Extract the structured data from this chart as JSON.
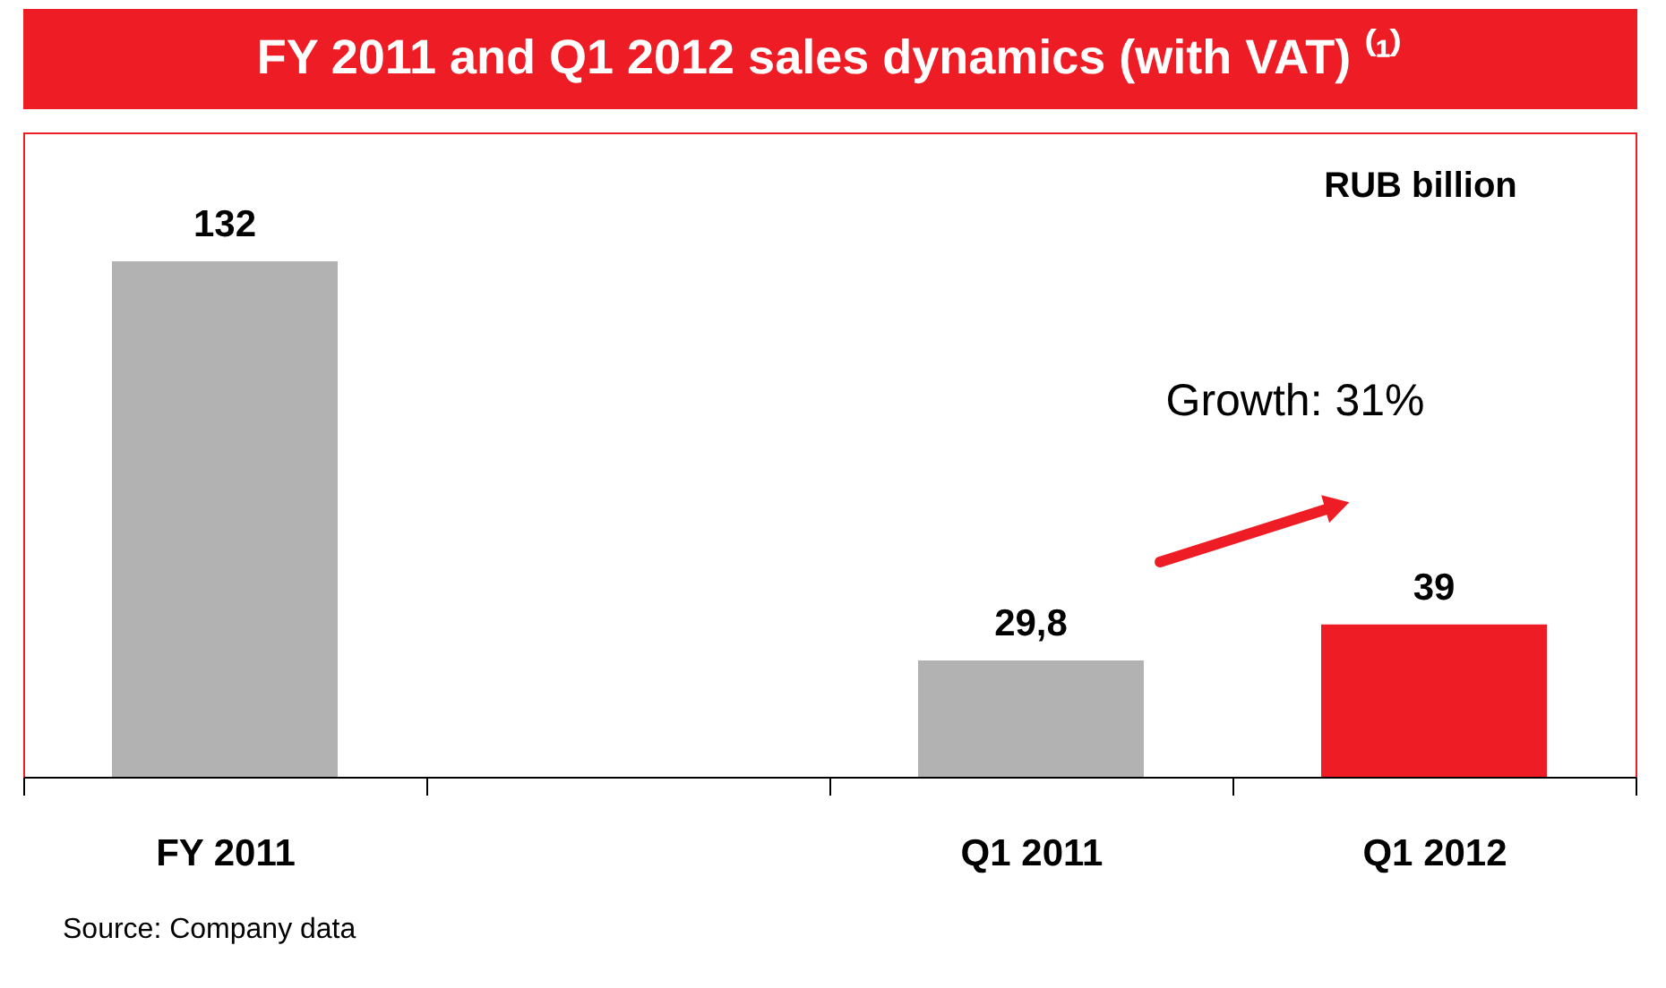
{
  "chart_data": {
    "type": "bar",
    "title": "FY 2011 and Q1 2012 sales dynamics (with VAT) ⁽¹⁾",
    "categories": [
      "FY 2011",
      null,
      "Q1 2011",
      "Q1 2012"
    ],
    "values": [
      132,
      null,
      29.8,
      39
    ],
    "colors": [
      "#b2b2b2",
      "#b2b2b2",
      "#b2b2b2",
      "#ee1c25"
    ],
    "value_labels": [
      "132",
      null,
      "29,8",
      "39"
    ],
    "annotations": [
      "RUB billion",
      "Growth: 31%",
      "Source: Company data"
    ],
    "grid": false
  }
}
